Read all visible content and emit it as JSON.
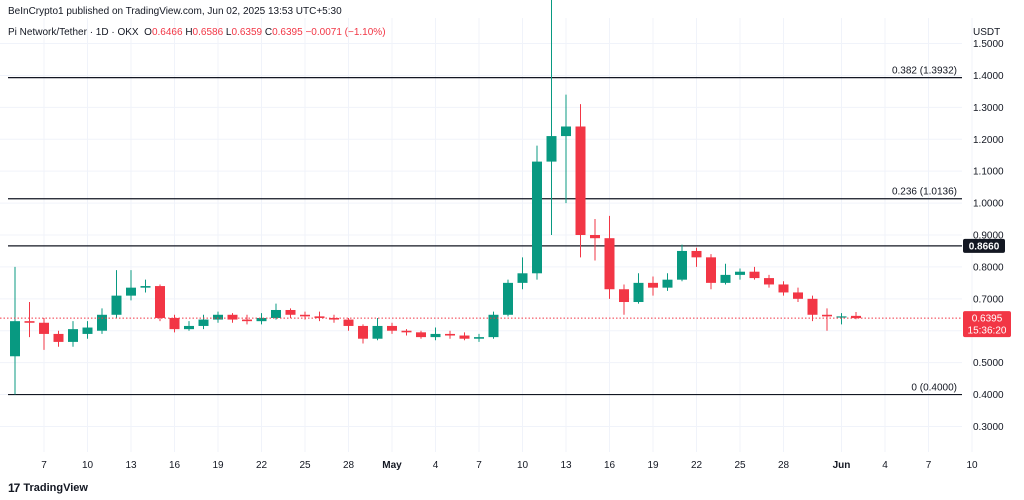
{
  "header": {
    "published": "BeInCrypto1 published on TradingView.com, Jun 02, 2025 13:53 UTC+5:30",
    "symbol": "Pi Network/Tether · 1D · OKX",
    "o_label": "O",
    "o_value": "0.6466",
    "h_label": "H",
    "h_value": "0.6586",
    "l_label": "L",
    "l_value": "0.6359",
    "c_label": "C",
    "c_value": "0.6395",
    "change": "−0.0071 (−1.10%)"
  },
  "axis": {
    "currency": "USDT"
  },
  "footer": {
    "logo_mark": "17",
    "brand": "TradingView"
  },
  "colors": {
    "up": "#089981",
    "down": "#f23645",
    "grid": "#f0f3fa",
    "level": "#131722"
  },
  "chart_data": {
    "type": "candlestick",
    "ylim": [
      0.22,
      1.58
    ],
    "y_ticks": [
      "0.3000",
      "0.4000",
      "0.5000",
      "0.6000",
      "0.7000",
      "0.8000",
      "0.9000",
      "1.0000",
      "1.1000",
      "1.2000",
      "1.3000",
      "1.4000",
      "1.5000"
    ],
    "x_ticks": [
      {
        "label": "7",
        "date": "2025-04-07",
        "bold": false
      },
      {
        "label": "10",
        "date": "2025-04-10",
        "bold": false
      },
      {
        "label": "13",
        "date": "2025-04-13",
        "bold": false
      },
      {
        "label": "16",
        "date": "2025-04-16",
        "bold": false
      },
      {
        "label": "19",
        "date": "2025-04-19",
        "bold": false
      },
      {
        "label": "22",
        "date": "2025-04-22",
        "bold": false
      },
      {
        "label": "25",
        "date": "2025-04-25",
        "bold": false
      },
      {
        "label": "28",
        "date": "2025-04-28",
        "bold": false
      },
      {
        "label": "May",
        "date": "2025-05-01",
        "bold": true
      },
      {
        "label": "4",
        "date": "2025-05-04",
        "bold": false
      },
      {
        "label": "7",
        "date": "2025-05-07",
        "bold": false
      },
      {
        "label": "10",
        "date": "2025-05-10",
        "bold": false
      },
      {
        "label": "13",
        "date": "2025-05-13",
        "bold": false
      },
      {
        "label": "16",
        "date": "2025-05-16",
        "bold": false
      },
      {
        "label": "19",
        "date": "2025-05-19",
        "bold": false
      },
      {
        "label": "22",
        "date": "2025-05-22",
        "bold": false
      },
      {
        "label": "25",
        "date": "2025-05-25",
        "bold": false
      },
      {
        "label": "28",
        "date": "2025-05-28",
        "bold": false
      },
      {
        "label": "Jun",
        "date": "2025-06-01",
        "bold": true
      },
      {
        "label": "4",
        "date": "2025-06-04",
        "bold": false
      },
      {
        "label": "7",
        "date": "2025-06-07",
        "bold": false
      },
      {
        "label": "10",
        "date": "2025-06-10",
        "bold": false
      }
    ],
    "levels": [
      {
        "label": "0.382 (1.3932)",
        "value": 1.3932
      },
      {
        "label": "0.236 (1.0136)",
        "value": 1.0136
      },
      {
        "label": "0 (0.4000)",
        "value": 0.4
      }
    ],
    "resistance": {
      "value": 0.866,
      "label": "0.8660"
    },
    "last_price": {
      "value": 0.6395,
      "label": "0.6395",
      "countdown": "15:36:20"
    },
    "candles": [
      {
        "date": "2025-04-05",
        "o": 0.52,
        "h": 0.8,
        "l": 0.4,
        "c": 0.63
      },
      {
        "date": "2025-04-06",
        "o": 0.63,
        "h": 0.69,
        "l": 0.58,
        "c": 0.625
      },
      {
        "date": "2025-04-07",
        "o": 0.625,
        "h": 0.64,
        "l": 0.54,
        "c": 0.59
      },
      {
        "date": "2025-04-08",
        "o": 0.59,
        "h": 0.6,
        "l": 0.55,
        "c": 0.565
      },
      {
        "date": "2025-04-09",
        "o": 0.565,
        "h": 0.63,
        "l": 0.55,
        "c": 0.605
      },
      {
        "date": "2025-04-10",
        "o": 0.59,
        "h": 0.63,
        "l": 0.575,
        "c": 0.61
      },
      {
        "date": "2025-04-11",
        "o": 0.6,
        "h": 0.67,
        "l": 0.59,
        "c": 0.65
      },
      {
        "date": "2025-04-12",
        "o": 0.65,
        "h": 0.79,
        "l": 0.64,
        "c": 0.71
      },
      {
        "date": "2025-04-13",
        "o": 0.71,
        "h": 0.79,
        "l": 0.695,
        "c": 0.735
      },
      {
        "date": "2025-04-14",
        "o": 0.735,
        "h": 0.76,
        "l": 0.72,
        "c": 0.74
      },
      {
        "date": "2025-04-15",
        "o": 0.74,
        "h": 0.745,
        "l": 0.63,
        "c": 0.64
      },
      {
        "date": "2025-04-16",
        "o": 0.64,
        "h": 0.65,
        "l": 0.595,
        "c": 0.605
      },
      {
        "date": "2025-04-17",
        "o": 0.605,
        "h": 0.63,
        "l": 0.6,
        "c": 0.615
      },
      {
        "date": "2025-04-18",
        "o": 0.615,
        "h": 0.65,
        "l": 0.605,
        "c": 0.635
      },
      {
        "date": "2025-04-19",
        "o": 0.635,
        "h": 0.66,
        "l": 0.625,
        "c": 0.65
      },
      {
        "date": "2025-04-20",
        "o": 0.65,
        "h": 0.655,
        "l": 0.625,
        "c": 0.635
      },
      {
        "date": "2025-04-21",
        "o": 0.635,
        "h": 0.65,
        "l": 0.62,
        "c": 0.63
      },
      {
        "date": "2025-04-22",
        "o": 0.63,
        "h": 0.655,
        "l": 0.62,
        "c": 0.64
      },
      {
        "date": "2025-04-23",
        "o": 0.64,
        "h": 0.685,
        "l": 0.635,
        "c": 0.665
      },
      {
        "date": "2025-04-24",
        "o": 0.665,
        "h": 0.67,
        "l": 0.64,
        "c": 0.65
      },
      {
        "date": "2025-04-25",
        "o": 0.65,
        "h": 0.66,
        "l": 0.635,
        "c": 0.645
      },
      {
        "date": "2025-04-26",
        "o": 0.645,
        "h": 0.66,
        "l": 0.63,
        "c": 0.64
      },
      {
        "date": "2025-04-27",
        "o": 0.64,
        "h": 0.65,
        "l": 0.625,
        "c": 0.635
      },
      {
        "date": "2025-04-28",
        "o": 0.635,
        "h": 0.64,
        "l": 0.6,
        "c": 0.615
      },
      {
        "date": "2025-04-29",
        "o": 0.615,
        "h": 0.62,
        "l": 0.56,
        "c": 0.575
      },
      {
        "date": "2025-04-30",
        "o": 0.575,
        "h": 0.64,
        "l": 0.57,
        "c": 0.615
      },
      {
        "date": "2025-05-01",
        "o": 0.615,
        "h": 0.625,
        "l": 0.59,
        "c": 0.6
      },
      {
        "date": "2025-05-02",
        "o": 0.6,
        "h": 0.605,
        "l": 0.585,
        "c": 0.595
      },
      {
        "date": "2025-05-03",
        "o": 0.595,
        "h": 0.6,
        "l": 0.575,
        "c": 0.58
      },
      {
        "date": "2025-05-04",
        "o": 0.58,
        "h": 0.61,
        "l": 0.57,
        "c": 0.59
      },
      {
        "date": "2025-05-05",
        "o": 0.59,
        "h": 0.6,
        "l": 0.575,
        "c": 0.585
      },
      {
        "date": "2025-05-06",
        "o": 0.585,
        "h": 0.595,
        "l": 0.57,
        "c": 0.575
      },
      {
        "date": "2025-05-07",
        "o": 0.575,
        "h": 0.59,
        "l": 0.565,
        "c": 0.58
      },
      {
        "date": "2025-05-08",
        "o": 0.58,
        "h": 0.66,
        "l": 0.575,
        "c": 0.65
      },
      {
        "date": "2025-05-09",
        "o": 0.65,
        "h": 0.76,
        "l": 0.645,
        "c": 0.75
      },
      {
        "date": "2025-05-10",
        "o": 0.75,
        "h": 0.83,
        "l": 0.73,
        "c": 0.78
      },
      {
        "date": "2025-05-11",
        "o": 0.78,
        "h": 1.18,
        "l": 0.76,
        "c": 1.13
      },
      {
        "date": "2025-05-12",
        "o": 1.13,
        "h": 1.66,
        "l": 0.9,
        "c": 1.21
      },
      {
        "date": "2025-05-13",
        "o": 1.21,
        "h": 1.34,
        "l": 1.0,
        "c": 1.24
      },
      {
        "date": "2025-05-14",
        "o": 1.24,
        "h": 1.31,
        "l": 0.83,
        "c": 0.9
      },
      {
        "date": "2025-05-15",
        "o": 0.9,
        "h": 0.95,
        "l": 0.82,
        "c": 0.89
      },
      {
        "date": "2025-05-16",
        "o": 0.89,
        "h": 0.96,
        "l": 0.7,
        "c": 0.73
      },
      {
        "date": "2025-05-17",
        "o": 0.73,
        "h": 0.745,
        "l": 0.65,
        "c": 0.69
      },
      {
        "date": "2025-05-18",
        "o": 0.69,
        "h": 0.78,
        "l": 0.685,
        "c": 0.75
      },
      {
        "date": "2025-05-19",
        "o": 0.75,
        "h": 0.77,
        "l": 0.71,
        "c": 0.735
      },
      {
        "date": "2025-05-20",
        "o": 0.735,
        "h": 0.78,
        "l": 0.725,
        "c": 0.76
      },
      {
        "date": "2025-05-21",
        "o": 0.76,
        "h": 0.87,
        "l": 0.755,
        "c": 0.85
      },
      {
        "date": "2025-05-22",
        "o": 0.85,
        "h": 0.86,
        "l": 0.8,
        "c": 0.83
      },
      {
        "date": "2025-05-23",
        "o": 0.83,
        "h": 0.84,
        "l": 0.73,
        "c": 0.75
      },
      {
        "date": "2025-05-24",
        "o": 0.75,
        "h": 0.81,
        "l": 0.745,
        "c": 0.775
      },
      {
        "date": "2025-05-25",
        "o": 0.775,
        "h": 0.795,
        "l": 0.76,
        "c": 0.785
      },
      {
        "date": "2025-05-26",
        "o": 0.785,
        "h": 0.8,
        "l": 0.76,
        "c": 0.765
      },
      {
        "date": "2025-05-27",
        "o": 0.765,
        "h": 0.775,
        "l": 0.735,
        "c": 0.745
      },
      {
        "date": "2025-05-28",
        "o": 0.745,
        "h": 0.755,
        "l": 0.71,
        "c": 0.72
      },
      {
        "date": "2025-05-29",
        "o": 0.72,
        "h": 0.735,
        "l": 0.69,
        "c": 0.7
      },
      {
        "date": "2025-05-30",
        "o": 0.7,
        "h": 0.71,
        "l": 0.63,
        "c": 0.65
      },
      {
        "date": "2025-05-31",
        "o": 0.65,
        "h": 0.67,
        "l": 0.6,
        "c": 0.645
      },
      {
        "date": "2025-06-01",
        "o": 0.645,
        "h": 0.655,
        "l": 0.62,
        "c": 0.645
      },
      {
        "date": "2025-06-02",
        "o": 0.6466,
        "h": 0.6586,
        "l": 0.6359,
        "c": 0.6395
      }
    ]
  }
}
